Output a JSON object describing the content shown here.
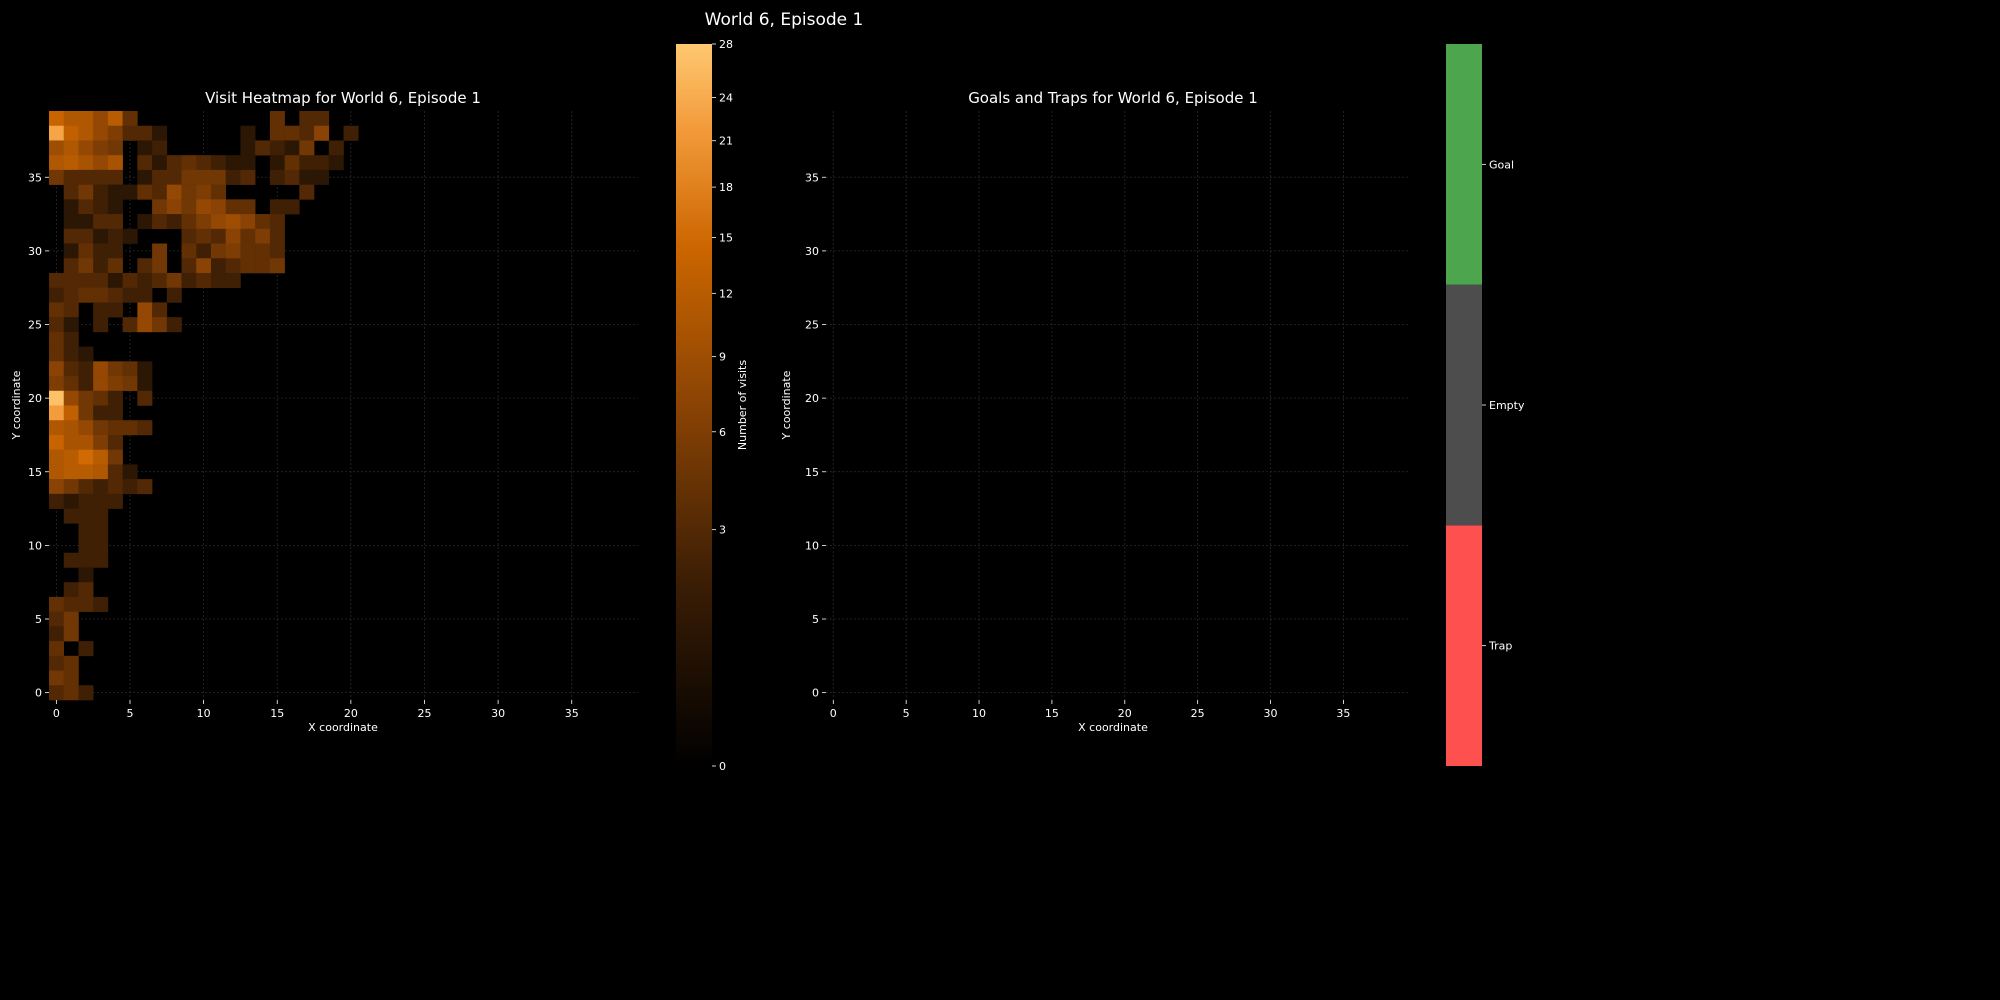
{
  "suptitle": "World 6, Episode 1",
  "chart_data": [
    {
      "type": "heatmap",
      "title": "Visit Heatmap for World 6, Episode 1",
      "xlabel": "X coordinate",
      "ylabel": "Y coordinate",
      "xlim": [
        -0.5,
        39.5
      ],
      "ylim": [
        -0.5,
        39.5
      ],
      "x_ticks": [
        0,
        5,
        10,
        15,
        20,
        25,
        30,
        35
      ],
      "y_ticks": [
        0,
        5,
        10,
        15,
        20,
        25,
        30,
        35
      ],
      "grid": true,
      "colorbar": {
        "label": "Number of visits",
        "scale": "sqrt",
        "ticks": [
          0,
          3,
          6,
          9,
          12,
          15,
          18,
          21,
          24,
          28
        ],
        "range": [
          0,
          28
        ]
      },
      "rows_note": "rows listed from y=39 down to y=0; each string is x=0..21, one char per cell; '.'=0 visits",
      "encoding_key": ".123456789ABCDEFGHIJKLMNOPQRS",
      "rows": [
        "EBB8C4.........4.33..",
        "NDB86331.....1.4437.2",
        "9B865.12.....13215.2.",
        "BCA8A.31343211.14221.",
        "53333.13355523.2311..",
        ".35211438564.....3...",
        ".1321..5758744.22....",
        ".1133.1324689743.....",
        ".33121...3437463.....",
        ".1422..5.4256443.....",
        ".3524.35.3723445.....",
        "3333132352322........",
        "2344322.2............",
        "43.22.83.............",
        "31.2.3852............",
        "42...................",
        "421..................",
        "7328541..............",
        "6428651..............",
        "R8542.3..............",
        "MD522................",
        "BA85443..............",
        "EAA63................",
        "BCFC5................",
        "BCCB31...............",
        "7532323..............",
        "21222................",
        ".222.................",
        "..22.................",
        "..22.................",
        ".222.................",
        "..1..................",
        ".23..................",
        "4332.................",
        "35...................",
        "25...................",
        "4.2..................",
        "34...................",
        "54...................",
        "342.................."
      ]
    },
    {
      "type": "heatmap",
      "title": "Goals and Traps for World 6, Episode 1",
      "xlabel": "X coordinate",
      "ylabel": "Y coordinate",
      "xlim": [
        -0.5,
        39.5
      ],
      "ylim": [
        -0.5,
        39.5
      ],
      "x_ticks": [
        0,
        5,
        10,
        15,
        20,
        25,
        30,
        35
      ],
      "y_ticks": [
        0,
        5,
        10,
        15,
        20,
        25,
        30,
        35
      ],
      "grid": true,
      "colorbar": {
        "categories": [
          "Trap",
          "Empty",
          "Goal"
        ],
        "colors": [
          "#ff5050",
          "#4d4d4d",
          "#4da64d"
        ]
      },
      "cells": []
    }
  ]
}
